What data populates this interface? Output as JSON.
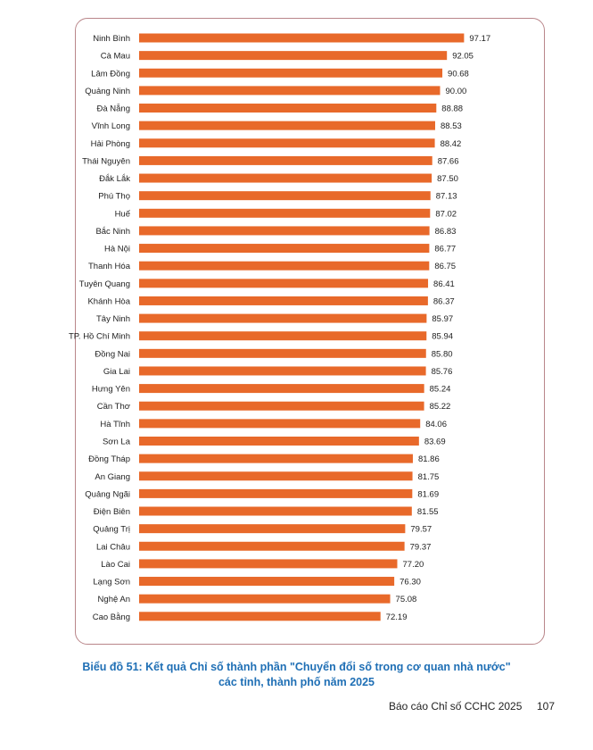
{
  "chart_data": {
    "type": "bar",
    "orientation": "horizontal",
    "bar_color": "#e8692a",
    "categories": [
      "Ninh Bình",
      "Cà Mau",
      "Lâm Đồng",
      "Quảng Ninh",
      "Đà Nẵng",
      "Vĩnh Long",
      "Hải Phòng",
      "Thái Nguyên",
      "Đắk Lắk",
      "Phú Thọ",
      "Huế",
      "Bắc Ninh",
      "Hà Nội",
      "Thanh Hóa",
      "Tuyên Quang",
      "Khánh Hòa",
      "Tây Ninh",
      "TP. Hồ Chí Minh",
      "Đồng Nai",
      "Gia Lai",
      "Hưng Yên",
      "Cần Thơ",
      "Hà Tĩnh",
      "Sơn La",
      "Đồng Tháp",
      "An Giang",
      "Quảng Ngãi",
      "Điện Biên",
      "Quảng Trị",
      "Lai Châu",
      "Lào Cai",
      "Lạng Sơn",
      "Nghệ An",
      "Cao Bằng"
    ],
    "values": [
      97.17,
      92.05,
      90.68,
      90.0,
      88.88,
      88.53,
      88.42,
      87.66,
      87.5,
      87.13,
      87.02,
      86.83,
      86.77,
      86.75,
      86.41,
      86.37,
      85.97,
      85.94,
      85.8,
      85.76,
      85.24,
      85.22,
      84.06,
      83.69,
      81.86,
      81.75,
      81.69,
      81.55,
      79.57,
      79.37,
      77.2,
      76.3,
      75.08,
      72.19
    ],
    "value_labels": [
      "97.17",
      "92.05",
      "90.68",
      "90.00",
      "88.88",
      "88.53",
      "88.42",
      "87.66",
      "87.50",
      "87.13",
      "87.02",
      "86.83",
      "86.77",
      "86.75",
      "86.41",
      "86.37",
      "85.97",
      "85.94",
      "85.80",
      "85.76",
      "85.24",
      "85.22",
      "84.06",
      "83.69",
      "81.86",
      "81.75",
      "81.69",
      "81.55",
      "79.57",
      "79.37",
      "77.20",
      "76.30",
      "75.08",
      "72.19"
    ],
    "xlim": [
      0,
      100
    ],
    "grid": false,
    "legend": "none"
  },
  "caption": {
    "line1": "Biểu đồ 51: Kết quả Chỉ số thành phần \"Chuyển đổi số trong cơ quan nhà nước\"",
    "line2": "các tỉnh, thành phố năm 2025"
  },
  "footer": {
    "report_title": "Báo cáo Chỉ số CCHC 2025",
    "page_number": "107"
  },
  "colors": {
    "frame_border": "#b9868a",
    "caption": "#1f6fb5"
  }
}
